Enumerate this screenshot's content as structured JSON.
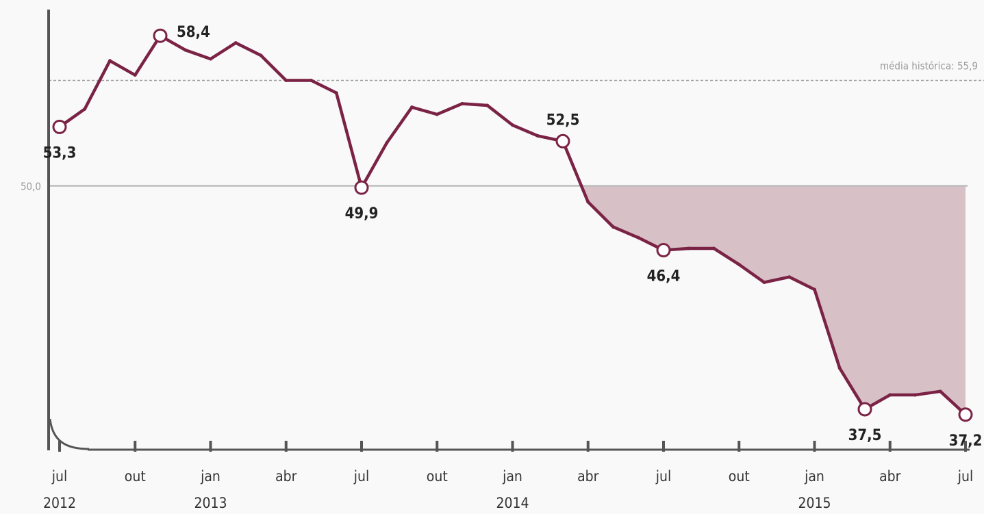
{
  "colors": {
    "line": "#7a2345",
    "fill": "#d8c0c7",
    "axis": "#555555",
    "baseline": "#bdbdbd",
    "reference": "#9e9e9e",
    "background": "#f9f9f9"
  },
  "chart_data": {
    "type": "line",
    "title": "",
    "xlabel": "",
    "ylabel": "",
    "ylim": [
      35.2,
      60.4
    ],
    "grid": false,
    "x": [
      "2012-07",
      "2012-08",
      "2012-09",
      "2012-10",
      "2012-11",
      "2012-12",
      "2013-01",
      "2013-02",
      "2013-03",
      "2013-04",
      "2013-05",
      "2013-06",
      "2013-07",
      "2013-08",
      "2013-09",
      "2013-10",
      "2013-11",
      "2013-12",
      "2014-01",
      "2014-02",
      "2014-03",
      "2014-04",
      "2014-05",
      "2014-06",
      "2014-07",
      "2014-08",
      "2014-09",
      "2014-10",
      "2014-11",
      "2014-12",
      "2015-01",
      "2015-02",
      "2015-03",
      "2015-04",
      "2015-05",
      "2015-06",
      "2015-07"
    ],
    "values": [
      53.3,
      54.3,
      57.0,
      56.2,
      58.4,
      57.6,
      57.1,
      58.0,
      57.3,
      55.9,
      55.9,
      55.2,
      49.9,
      52.4,
      54.4,
      54.0,
      54.6,
      54.5,
      53.4,
      52.8,
      52.5,
      49.1,
      47.7,
      47.1,
      46.4,
      46.5,
      46.5,
      45.6,
      44.6,
      44.9,
      44.2,
      39.8,
      37.5,
      38.3,
      38.3,
      38.5,
      37.2
    ],
    "threshold": {
      "value": 50.0,
      "label": "50,0"
    },
    "reference_line": {
      "value": 55.9,
      "label": "média histórica: 55,9"
    },
    "shaded_region": "below 50,0 from 2014-04 to 2015-07",
    "point_labels": [
      {
        "index": 0,
        "text": "53,3",
        "position": "below"
      },
      {
        "index": 4,
        "text": "58,4",
        "position": "right"
      },
      {
        "index": 12,
        "text": "49,9",
        "position": "below"
      },
      {
        "index": 20,
        "text": "52,5",
        "position": "above"
      },
      {
        "index": 24,
        "text": "46,4",
        "position": "below"
      },
      {
        "index": 32,
        "text": "37,5",
        "position": "below"
      },
      {
        "index": 36,
        "text": "37,2",
        "position": "below"
      }
    ],
    "x_ticks": [
      {
        "index": 0,
        "label": "jul",
        "year": "2012"
      },
      {
        "index": 3,
        "label": "out",
        "year": ""
      },
      {
        "index": 6,
        "label": "jan",
        "year": "2013"
      },
      {
        "index": 9,
        "label": "abr",
        "year": ""
      },
      {
        "index": 12,
        "label": "jul",
        "year": ""
      },
      {
        "index": 15,
        "label": "out",
        "year": ""
      },
      {
        "index": 18,
        "label": "jan",
        "year": "2014"
      },
      {
        "index": 21,
        "label": "abr",
        "year": ""
      },
      {
        "index": 24,
        "label": "jul",
        "year": ""
      },
      {
        "index": 27,
        "label": "out",
        "year": ""
      },
      {
        "index": 30,
        "label": "jan",
        "year": "2015"
      },
      {
        "index": 33,
        "label": "abr",
        "year": ""
      },
      {
        "index": 36,
        "label": "jul",
        "year": ""
      }
    ]
  }
}
